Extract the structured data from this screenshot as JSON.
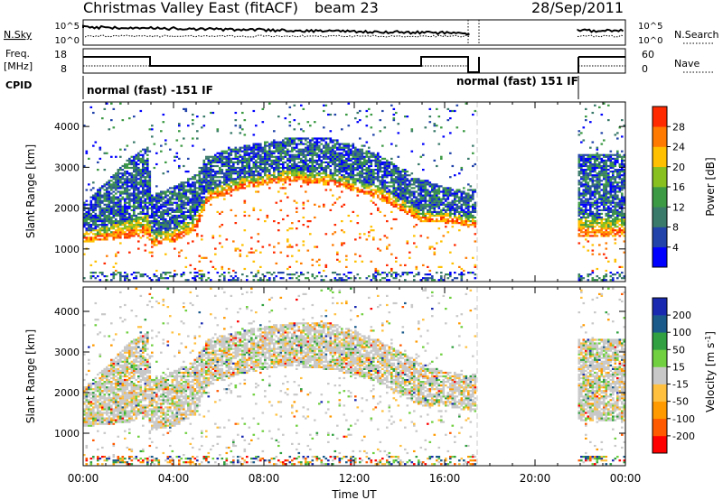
{
  "header": {
    "title": "Christmas Valley East (fitACF)",
    "beam": "beam 23",
    "date": "28/Sep/2011"
  },
  "sky_panel": {
    "left_label": "N.Sky",
    "right_label": "N.Search",
    "left_ticks": [
      "10^5",
      "10^0"
    ],
    "right_ticks": [
      "10^5",
      "10^0"
    ]
  },
  "freq_panel": {
    "left_label_line1": "Freq.",
    "left_label_line2": "[MHz]",
    "right_label": "Nave",
    "left_ticks": [
      "18",
      "8"
    ],
    "right_ticks": [
      "60",
      "0"
    ]
  },
  "cpid": {
    "label": "CPID",
    "mode_1": "normal (fast) -151 IF",
    "mode_2": "normal (fast) 151 IF"
  },
  "colors": {
    "power_scale": [
      "#0000ff",
      "#2244aa",
      "#3a7a6a",
      "#3c9a44",
      "#88c020",
      "#ffc000",
      "#ff7a00",
      "#ff2a00"
    ],
    "velocity_scale": [
      "#ff0000",
      "#ff5a00",
      "#ff9a00",
      "#ffc040",
      "#c8c8c8",
      "#70d040",
      "#30a040",
      "#1a5a8a",
      "#1a2ab0"
    ]
  },
  "chart_data": [
    {
      "type": "heatmap",
      "name": "power",
      "ylabel": "Slant Range [km]",
      "yticks": [
        1000,
        2000,
        3000,
        4000
      ],
      "ylim": [
        200,
        4600
      ],
      "colorbar_label": "Power [dB]",
      "colorbar_ticks": [
        4,
        8,
        12,
        16,
        20,
        24,
        28
      ],
      "colorbar_range": [
        0,
        32
      ],
      "data_gap_ut": [
        17.4,
        21.9
      ],
      "band": [
        {
          "t": 0.0,
          "low": 1200,
          "high": 2100
        },
        {
          "t": 1.0,
          "low": 1250,
          "high": 2600
        },
        {
          "t": 2.0,
          "low": 1300,
          "high": 3200
        },
        {
          "t": 2.9,
          "low": 1400,
          "high": 3500
        },
        {
          "t": 3.0,
          "low": 1100,
          "high": 2300
        },
        {
          "t": 4.0,
          "low": 1200,
          "high": 2500
        },
        {
          "t": 5.0,
          "low": 1500,
          "high": 2800
        },
        {
          "t": 5.5,
          "low": 2200,
          "high": 3300
        },
        {
          "t": 7.0,
          "low": 2500,
          "high": 3500
        },
        {
          "t": 9.0,
          "low": 2700,
          "high": 3700
        },
        {
          "t": 11.0,
          "low": 2600,
          "high": 3700
        },
        {
          "t": 13.0,
          "low": 2300,
          "high": 3300
        },
        {
          "t": 14.0,
          "low": 2000,
          "high": 3000
        },
        {
          "t": 15.0,
          "low": 1700,
          "high": 2700
        },
        {
          "t": 16.0,
          "low": 1700,
          "high": 2500
        },
        {
          "t": 17.0,
          "low": 1600,
          "high": 2400
        },
        {
          "t": 21.9,
          "low": 1350,
          "high": 3300
        },
        {
          "t": 24.0,
          "low": 1350,
          "high": 3300
        }
      ]
    },
    {
      "type": "heatmap",
      "name": "velocity",
      "ylabel": "Slant Range [km]",
      "xlabel": "Time UT",
      "yticks": [
        1000,
        2000,
        3000,
        4000
      ],
      "ylim": [
        200,
        4600
      ],
      "xlim": [
        0,
        24
      ],
      "xticks": [
        "00:00",
        "04:00",
        "08:00",
        "12:00",
        "16:00",
        "20:00",
        "00:00"
      ],
      "colorbar_label": "Velocity [m s^-1]",
      "colorbar_ticks": [
        -200,
        -100,
        -50,
        -15,
        15,
        50,
        100,
        200
      ],
      "data_gap_ut": [
        17.4,
        21.9
      ]
    }
  ]
}
